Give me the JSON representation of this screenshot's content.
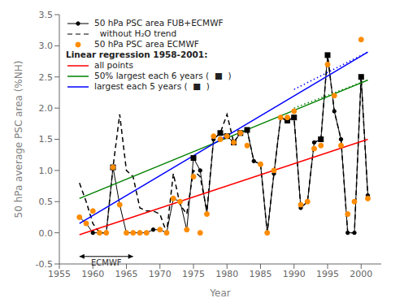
{
  "chart_data": {
    "type": "line",
    "title": "",
    "xlabel": "Year",
    "ylabel": "50 hPa average PSC area (%NH)",
    "xlim": [
      1955,
      2003
    ],
    "ylim": [
      -0.5,
      3.5
    ],
    "xticks": [
      1955,
      1960,
      1965,
      1970,
      1975,
      1980,
      1985,
      1990,
      1995,
      2000
    ],
    "yticks": [
      -0.5,
      {
        "value": 0.0,
        "label": "0.0"
      },
      0.5,
      {
        "value": 1.0,
        "label": "1.0"
      },
      1.5,
      {
        "value": 2.0,
        "label": "2.0"
      },
      2.5,
      {
        "value": 3.0,
        "label": "3.0"
      },
      3.5
    ],
    "grid": false,
    "legend": "upper left",
    "series": [
      {
        "name": "50 hPa PSC area FUB+ECMWF",
        "color": "#000000",
        "line_style": "solid",
        "marker": "circle",
        "x": [
          1958,
          1959,
          1960,
          1961,
          1962,
          1963,
          1964,
          1965,
          1966,
          1967,
          1968,
          1969,
          1970,
          1971,
          1972,
          1973,
          1974,
          1975,
          1976,
          1977,
          1978,
          1979,
          1980,
          1981,
          1982,
          1983,
          1984,
          1985,
          1986,
          1987,
          1988,
          1989,
          1990,
          1991,
          1992,
          1993,
          1994,
          1995,
          1996,
          1997,
          1998,
          1999,
          2000,
          2001
        ],
        "values": [
          0.25,
          0.15,
          0.0,
          0.0,
          0.0,
          1.05,
          0.45,
          0.0,
          0.0,
          0.0,
          0.0,
          0.05,
          0.05,
          0.0,
          0.55,
          0.5,
          0.05,
          1.2,
          1.0,
          0.3,
          1.5,
          1.6,
          1.55,
          1.45,
          1.6,
          1.65,
          1.15,
          1.1,
          0.0,
          0.95,
          1.85,
          1.8,
          1.85,
          0.4,
          0.5,
          1.45,
          1.5,
          2.85,
          1.95,
          1.5,
          0.0,
          0.0,
          2.5,
          0.6
        ]
      },
      {
        "name": "  without H₂O trend",
        "color": "#000000",
        "line_style": "dashed",
        "marker": "none",
        "x": [
          1958,
          1959,
          1960,
          1961,
          1962,
          1963,
          1964,
          1965,
          1966,
          1967,
          1968,
          1969,
          1970,
          1971,
          1972,
          1973,
          1974,
          1975,
          1976,
          1977,
          1978,
          1979,
          1980,
          1981,
          1982,
          1983,
          1984,
          1985,
          1986,
          1987,
          1988,
          1989,
          1990,
          1991,
          1992,
          1993,
          1994,
          1995,
          1996,
          1997,
          1998,
          1999,
          2000,
          2001
        ],
        "values": [
          0.8,
          0.5,
          0.15,
          0.0,
          0.0,
          1.05,
          1.9,
          1.0,
          0.9,
          0.4,
          0.35,
          0.35,
          0.3,
          0.0,
          0.95,
          0.45,
          0.3,
          1.0,
          0.9,
          0.35,
          1.5,
          1.6,
          1.9,
          1.45,
          1.6,
          1.65,
          1.15,
          1.1,
          0.0,
          0.95,
          1.85,
          1.8,
          1.85,
          0.4,
          0.5,
          1.45,
          1.5,
          2.85,
          1.95,
          1.5,
          0.0,
          0.0,
          2.5,
          0.6
        ]
      },
      {
        "color": "#000000",
        "line_style": "none",
        "marker": "square",
        "x": [
          1963,
          1975,
          1979,
          1980,
          1981,
          1982,
          1983,
          1989,
          1990,
          1994,
          1995,
          2000
        ],
        "values": [
          1.05,
          1.2,
          1.6,
          1.55,
          1.45,
          1.6,
          1.65,
          1.8,
          1.85,
          1.5,
          2.85,
          2.5
        ]
      },
      {
        "name": "50 hPa PSC area ECMWF",
        "color": "#FF8C00",
        "line_style": "none",
        "marker": "circle",
        "x": [
          1958,
          1959,
          1960,
          1961,
          1962,
          1963,
          1964,
          1965,
          1966,
          1967,
          1968,
          1970,
          1971,
          1972,
          1973,
          1974,
          1975,
          1976,
          1977,
          1978,
          1979,
          1980,
          1981,
          1982,
          1983,
          1985,
          1986,
          1987,
          1988,
          1989,
          1990,
          1991,
          1992,
          1993,
          1994,
          1995,
          1996,
          1997,
          1998,
          1999,
          2000,
          2001
        ],
        "values": [
          0.25,
          0.15,
          0.35,
          0.0,
          0.0,
          1.05,
          0.45,
          0.0,
          0.0,
          0.0,
          0.0,
          0.05,
          0.0,
          0.55,
          0.5,
          0.05,
          0.9,
          0.0,
          0.3,
          1.55,
          1.5,
          1.55,
          1.45,
          1.6,
          1.4,
          1.1,
          0.0,
          1.0,
          1.85,
          1.85,
          1.95,
          0.45,
          0.5,
          1.35,
          1.4,
          2.7,
          2.2,
          1.4,
          0.3,
          0.5,
          3.1,
          0.55
        ]
      },
      {
        "name": "all points",
        "color": "red",
        "line_style": "solid",
        "marker": "none",
        "x": [
          1958,
          2001
        ],
        "values": [
          -0.03,
          1.5
        ]
      },
      {
        "name": "50% largest each 6 years (  ■  )",
        "color": "green",
        "line_style": "solid",
        "marker": "none",
        "x": [
          1958,
          2001
        ],
        "values": [
          0.55,
          2.45
        ]
      },
      {
        "name": "largest each 5 years (  ■  )",
        "color": "blue",
        "line_style": "solid",
        "marker": "none",
        "x": [
          1958,
          2001
        ],
        "values": [
          0.15,
          2.9
        ]
      },
      {
        "color": "green",
        "line_style": "dotted",
        "marker": "none",
        "x": [
          1990,
          2001
        ],
        "values": [
          2.0,
          2.45
        ]
      },
      {
        "color": "blue",
        "line_style": "dotted",
        "marker": "none",
        "x": [
          1990,
          2001
        ],
        "values": [
          2.3,
          2.9
        ]
      }
    ],
    "annotations": [
      {
        "text": "Linear regression 1958-2001:"
      },
      {
        "text": "ECMWF",
        "x": 1962,
        "y": -0.42,
        "bracket": {
          "x": [
            1958,
            1966
          ],
          "y": -0.38
        }
      }
    ]
  }
}
